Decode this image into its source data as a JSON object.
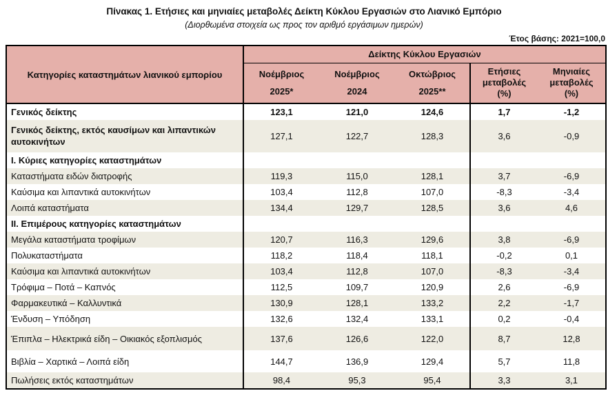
{
  "page": {
    "title": "Πίνακας 1. Ετήσιες και μηνιαίες μεταβολές Δείκτη Κύκλου Εργασιών στο Λιανικό Εμπόριο",
    "subtitle": "(Διορθωμένα στοιχεία ως προς τον αριθμό εργάσιμων ημερών)",
    "base_year_note": "Έτος βάσης: 2021=100,0"
  },
  "colors": {
    "header_pink": "#e5b0aa",
    "row_shade": "#eeece2"
  },
  "chart_data": {
    "type": "table",
    "group_header": "Δείκτης Κύκλου Εργασιών",
    "category_header": "Κατηγορίες καταστημάτων λιανικού εμπορίου",
    "columns": [
      {
        "line1": "Νοέμβριος",
        "line2": "2025*"
      },
      {
        "line1": "Νοέμβριος",
        "line2": "2024"
      },
      {
        "line1": "Οκτώβριος",
        "line2": "2025**"
      },
      {
        "line1": "Ετήσιες",
        "line2": "μεταβολές",
        "line3": "(%)"
      },
      {
        "line1": "Μηνιαίες",
        "line2": "μεταβολές",
        "line3": "(%)"
      }
    ],
    "rows": [
      {
        "label": "Γενικός δείκτης",
        "values": [
          "123,1",
          "121,0",
          "124,6",
          "1,7",
          "-1,2"
        ],
        "bold": true
      },
      {
        "label": "Γενικός δείκτης, εκτός καυσίμων και λιπαντικών αυτοκινήτων",
        "values": [
          "127,1",
          "122,7",
          "128,3",
          "3,6",
          "-0,9"
        ],
        "bold_label": true
      },
      {
        "label": "Ι. Κύριες κατηγορίες καταστημάτων",
        "values": [
          "",
          "",
          "",
          "",
          ""
        ],
        "section": true
      },
      {
        "label": "Καταστήματα ειδών διατροφής",
        "values": [
          "119,3",
          "115,0",
          "128,1",
          "3,7",
          "-6,9"
        ]
      },
      {
        "label": "Καύσιμα και λιπαντικά αυτοκινήτων",
        "values": [
          "103,4",
          "112,8",
          "107,0",
          "-8,3",
          "-3,4"
        ]
      },
      {
        "label": "Λοιπά καταστήματα",
        "values": [
          "134,4",
          "129,7",
          "128,5",
          "3,6",
          "4,6"
        ]
      },
      {
        "label": "ΙΙ. Επιμέρους κατηγορίες καταστημάτων",
        "values": [
          "",
          "",
          "",
          "",
          ""
        ],
        "section": true
      },
      {
        "label": "Μεγάλα καταστήματα τροφίμων",
        "values": [
          "120,7",
          "116,3",
          "129,6",
          "3,8",
          "-6,9"
        ]
      },
      {
        "label": "Πολυκαταστήματα",
        "values": [
          "118,2",
          "118,4",
          "118,1",
          "-0,2",
          "0,1"
        ]
      },
      {
        "label": "Καύσιμα και λιπαντικά αυτοκινήτων",
        "values": [
          "103,4",
          "112,8",
          "107,0",
          "-8,3",
          "-3,4"
        ]
      },
      {
        "label": "Τρόφιμα – Ποτά – Καπνός",
        "values": [
          "112,5",
          "109,7",
          "120,9",
          "2,6",
          "-6,9"
        ]
      },
      {
        "label": "Φαρμακευτικά – Καλλυντικά",
        "values": [
          "130,9",
          "128,1",
          "133,2",
          "2,2",
          "-1,7"
        ]
      },
      {
        "label": "Ένδυση – Υπόδηση",
        "values": [
          "132,6",
          "132,4",
          "133,1",
          "0,2",
          "-0,4"
        ]
      },
      {
        "label": "Έπιπλα – Ηλεκτρικά είδη – Οικιακός εξοπλισμός",
        "values": [
          "137,6",
          "126,6",
          "122,0",
          "8,7",
          "12,8"
        ]
      },
      {
        "label": "Βιβλία – Χαρτικά – Λοιπά είδη",
        "values": [
          "144,7",
          "136,9",
          "129,4",
          "5,7",
          "11,8"
        ]
      },
      {
        "label": "Πωλήσεις εκτός καταστημάτων",
        "values": [
          "98,4",
          "95,3",
          "95,4",
          "3,3",
          "3,1"
        ]
      }
    ]
  }
}
